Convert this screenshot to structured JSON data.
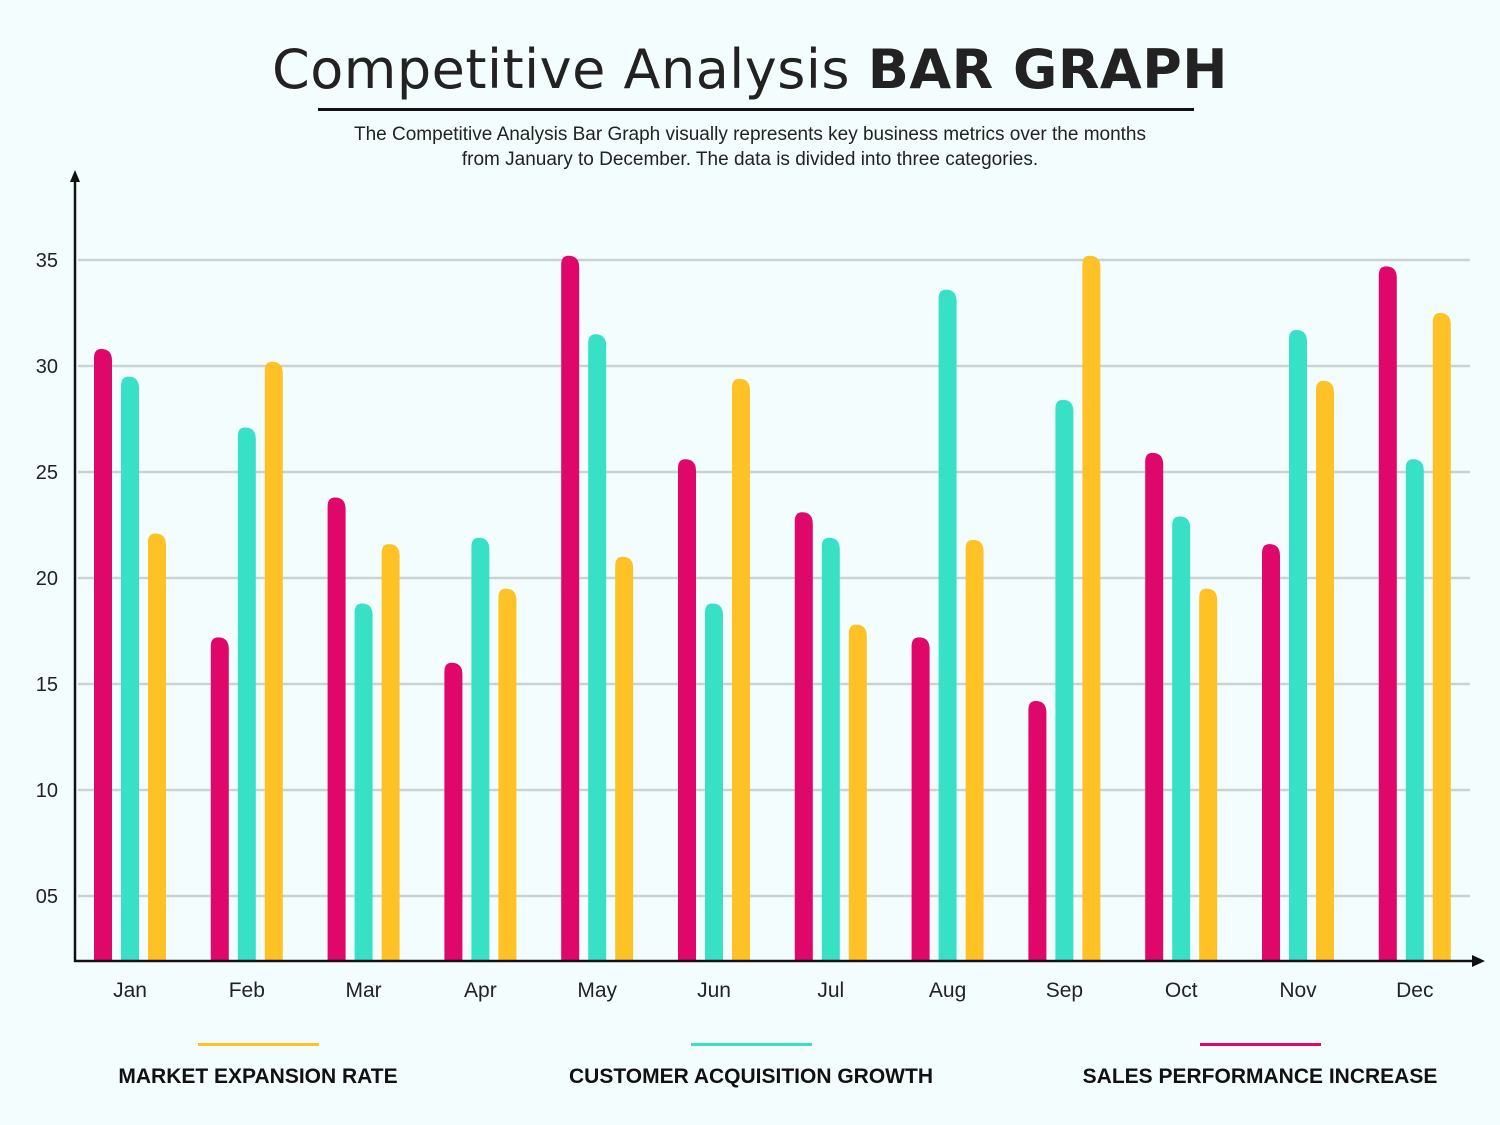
{
  "title_regular": "Competitive Analysis",
  "title_bold": "BAR GRAPH",
  "subtitle_line1": "The Competitive Analysis Bar Graph visually represents key business metrics over the months",
  "subtitle_line2": "from January to December. The data is divided into three categories.",
  "chart_data": {
    "type": "bar",
    "title": "Competitive Analysis BAR GRAPH",
    "xlabel": "",
    "ylabel": "",
    "ylim": [
      2,
      39
    ],
    "grid": true,
    "legend_placement": "bottom",
    "yticks": [
      "05",
      "10",
      "15",
      "20",
      "25",
      "30",
      "35"
    ],
    "ytick_values": [
      5,
      10,
      15,
      20,
      25,
      30,
      35
    ],
    "categories": [
      "Jan",
      "Feb",
      "Mar",
      "Apr",
      "May",
      "Jun",
      "Jul",
      "Aug",
      "Sep",
      "Oct",
      "Nov",
      "Dec"
    ],
    "series": [
      {
        "name": "SALES PERFORMANCE INCREASE",
        "color": "#e0076b",
        "values": [
          30.8,
          17.2,
          23.8,
          16.0,
          35.2,
          25.6,
          23.1,
          17.2,
          14.2,
          25.9,
          21.6,
          34.7
        ]
      },
      {
        "name": "CUSTOMER ACQUISITION GROWTH",
        "color": "#38e0c6",
        "values": [
          29.5,
          27.1,
          18.8,
          21.9,
          31.5,
          18.8,
          21.9,
          33.6,
          28.4,
          22.9,
          31.7,
          25.6
        ]
      },
      {
        "name": "MARKET EXPANSION RATE",
        "color": "#fec226",
        "values": [
          22.1,
          30.2,
          21.6,
          19.5,
          21.0,
          29.4,
          17.8,
          21.8,
          35.2,
          19.5,
          29.3,
          32.5
        ]
      }
    ]
  }
}
